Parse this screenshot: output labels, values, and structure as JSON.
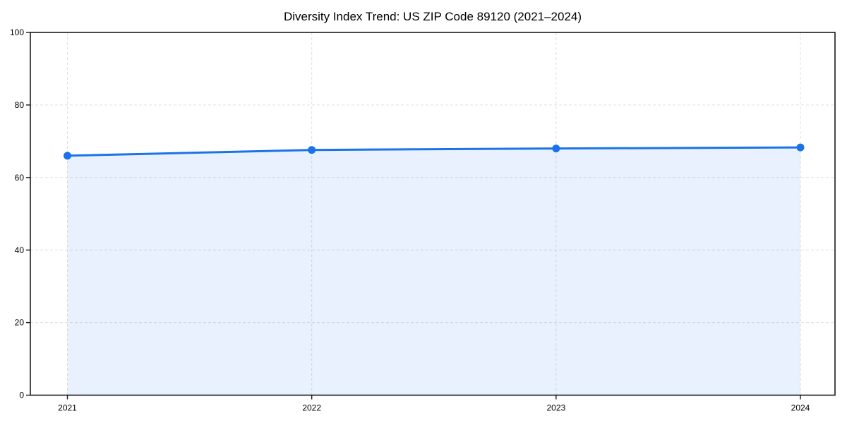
{
  "chart_data": {
    "type": "area",
    "title": "Diversity Index Trend: US ZIP Code 89120 (2021–2024)",
    "series_name": "Diversity Index",
    "categories": [
      "2021",
      "2022",
      "2023",
      "2024"
    ],
    "values": [
      66,
      67.6,
      68,
      68.3
    ],
    "xlabel": "",
    "ylabel": "",
    "ylim": [
      0,
      100
    ],
    "yticks": [
      0,
      20,
      40,
      60,
      80,
      100
    ],
    "grid": true,
    "grid_style": "dashed",
    "legend": "none",
    "colors": {
      "line": "#1a73e8",
      "marker": "#1a73e8",
      "area_fill": "#1a73e8",
      "area_opacity": "0.10",
      "grid": "#e0e0e0",
      "axis": "#1a1a1a",
      "text": "#000000",
      "background": "#ffffff"
    }
  }
}
